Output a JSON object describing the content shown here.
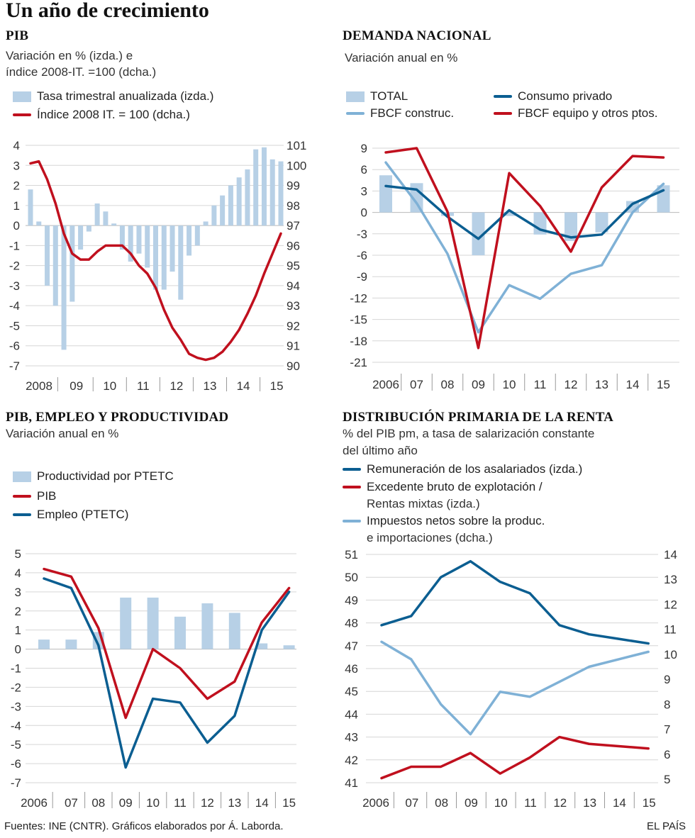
{
  "title": "Un año de crecimiento",
  "source": "Fuentes: INE (CNTR).  Gráficos elaborados por Á. Laborda.",
  "brand": "EL PAÍS",
  "colors": {
    "red": "#c0101e",
    "blue": "#0b5e91",
    "lightblue": "#7fb1d6",
    "bar": "#b7d0e6",
    "grid": "#d6d6d6"
  },
  "panels": {
    "pib": {
      "title": "PIB",
      "subtitle_1": "Variación en % (izda.) e",
      "subtitle_2": "índice 2008-IT. =100 (dcha.)",
      "legend_bar": "Tasa trimestral anualizada (izda.)",
      "legend_line": "Índice 2008 IT. = 100 (dcha.)"
    },
    "demanda": {
      "title": "DEMANDA NACIONAL",
      "subtitle": "Variación anual en %",
      "legend_total": "TOTAL",
      "legend_consumo": "Consumo privado",
      "legend_fbcf_c": "FBCF construc.",
      "legend_fbcf_e": "FBCF equipo y otros ptos."
    },
    "empleo": {
      "title": "PIB, EMPLEO Y PRODUCTIVIDAD",
      "subtitle": "Variación  anual en %",
      "legend_prod": "Productividad por  PTETC",
      "legend_pib": "PIB",
      "legend_empleo": "Empleo (PTETC)"
    },
    "renta": {
      "title": "DISTRIBUCIÓN PRIMARIA DE LA RENTA",
      "subtitle_1": "% del PIB pm, a tasa de salarización constante",
      "subtitle_2": "del último año",
      "legend_rem": "Remuneración de los asalariados (izda.)",
      "legend_exc_1": "Excedente bruto de explotación /",
      "legend_exc_2": "Rentas mixtas (izda.)",
      "legend_imp_1": "Impuestos netos sobre la produc.",
      "legend_imp_2": "e importaciones (dcha.)"
    }
  },
  "chart_data": [
    {
      "id": "pib",
      "type": "bar",
      "title": "PIB",
      "x_labels": [
        "2008",
        "09",
        "10",
        "11",
        "12",
        "13",
        "14",
        "15"
      ],
      "y_left_ticks": [
        4,
        3,
        2,
        1,
        0,
        -1,
        -2,
        -3,
        -4,
        -5,
        -6,
        -7
      ],
      "y_right_ticks": [
        101,
        100,
        99,
        98,
        97,
        96,
        95,
        94,
        93,
        92,
        91,
        90
      ],
      "ylim_left": [
        -7,
        4
      ],
      "ylim_right": [
        90,
        101
      ],
      "series": [
        {
          "name": "Tasa trimestral anualizada (izda.)",
          "kind": "bar",
          "axis": "left",
          "values": [
            1.8,
            0.2,
            -3.0,
            -4.0,
            -6.2,
            -3.8,
            -1.2,
            -0.3,
            1.1,
            0.7,
            0.1,
            -1.2,
            -1.8,
            -1.4,
            -2.1,
            -3.2,
            -3.2,
            -2.3,
            -3.7,
            -1.5,
            -1.0,
            0.2,
            1.0,
            1.5,
            2.0,
            2.4,
            2.8,
            3.8,
            3.9,
            3.3,
            3.2
          ]
        },
        {
          "name": "Índice 2008 IT. = 100 (dcha.)",
          "kind": "line",
          "axis": "right",
          "values": [
            100.1,
            100.2,
            99.3,
            98.1,
            96.6,
            95.6,
            95.3,
            95.3,
            95.7,
            96.0,
            96.0,
            96.0,
            95.6,
            95.0,
            94.6,
            93.9,
            92.8,
            91.9,
            91.3,
            90.6,
            90.4,
            90.3,
            90.4,
            90.7,
            91.2,
            91.8,
            92.6,
            93.5,
            94.6,
            95.6,
            96.6
          ]
        }
      ]
    },
    {
      "id": "demanda",
      "type": "bar",
      "title": "DEMANDA NACIONAL",
      "categories": [
        "2006",
        "07",
        "08",
        "09",
        "10",
        "11",
        "12",
        "13",
        "14",
        "15"
      ],
      "y_ticks": [
        9,
        6,
        3,
        0,
        -3,
        -6,
        -9,
        -12,
        -15,
        -18,
        -21
      ],
      "ylim": [
        -21,
        9
      ],
      "series": [
        {
          "name": "TOTAL",
          "kind": "bar",
          "values": [
            5.2,
            4.1,
            -0.5,
            -6.0,
            -0.5,
            -3.1,
            -4.0,
            -2.8,
            1.6,
            3.8
          ]
        },
        {
          "name": "Consumo privado",
          "kind": "line",
          "values": [
            3.7,
            3.2,
            -0.6,
            -3.7,
            0.3,
            -2.4,
            -3.5,
            -3.1,
            1.2,
            3.1
          ]
        },
        {
          "name": "FBCF construc.",
          "kind": "line",
          "values": [
            7.0,
            1.3,
            -5.8,
            -16.8,
            -10.2,
            -12.1,
            -8.6,
            -7.4,
            0.0,
            4.0
          ]
        },
        {
          "name": "FBCF equipo y otros ptos.",
          "kind": "line",
          "values": [
            8.4,
            9.0,
            0.1,
            -19.0,
            5.5,
            0.9,
            -5.5,
            3.5,
            7.9,
            7.7
          ]
        }
      ]
    },
    {
      "id": "empleo",
      "type": "bar",
      "title": "PIB, EMPLEO Y PRODUCTIVIDAD",
      "categories": [
        "2006",
        "07",
        "08",
        "09",
        "10",
        "11",
        "12",
        "13",
        "14",
        "15"
      ],
      "y_ticks": [
        5,
        4,
        3,
        2,
        1,
        0,
        -1,
        -2,
        -3,
        -4,
        -5,
        -6,
        -7
      ],
      "ylim": [
        -7,
        5
      ],
      "series": [
        {
          "name": "Productividad por  PTETC",
          "kind": "bar",
          "values": [
            0.5,
            0.5,
            0.9,
            2.7,
            2.7,
            1.7,
            2.4,
            1.9,
            0.3,
            0.2
          ]
        },
        {
          "name": "PIB",
          "kind": "line",
          "values": [
            4.2,
            3.8,
            1.1,
            -3.6,
            0.0,
            -1.0,
            -2.6,
            -1.7,
            1.4,
            3.2
          ]
        },
        {
          "name": "Empleo (PTETC)",
          "kind": "line",
          "values": [
            3.7,
            3.2,
            0.2,
            -6.2,
            -2.6,
            -2.8,
            -4.9,
            -3.5,
            1.0,
            3.0
          ]
        }
      ]
    },
    {
      "id": "renta",
      "type": "line",
      "title": "DISTRIBUCIÓN PRIMARIA DE LA RENTA",
      "categories": [
        "2006",
        "07",
        "08",
        "09",
        "10",
        "11",
        "12",
        "13",
        "14",
        "15"
      ],
      "y_left_ticks": [
        51,
        50,
        49,
        48,
        47,
        46,
        45,
        44,
        43,
        42,
        41
      ],
      "y_right_ticks": [
        14,
        13,
        12,
        11,
        10,
        9,
        8,
        7,
        6,
        5
      ],
      "ylim_left": [
        41,
        51
      ],
      "ylim_right": [
        5,
        14
      ],
      "series": [
        {
          "name": "Remuneración de los asalariados (izda.)",
          "axis": "left",
          "values": [
            47.9,
            48.3,
            50.0,
            50.7,
            49.8,
            49.3,
            47.9,
            47.5,
            47.3,
            47.1
          ]
        },
        {
          "name": "Excedente bruto de explotación / Rentas mixtas (izda.)",
          "axis": "left",
          "values": [
            41.2,
            41.7,
            41.7,
            42.3,
            41.4,
            42.1,
            43.0,
            42.7,
            42.6,
            42.5
          ]
        },
        {
          "name": "Impuestos netos sobre la produc. e importaciones (dcha.)",
          "axis": "right",
          "values": [
            10.5,
            9.8,
            8.0,
            6.8,
            8.5,
            8.3,
            8.9,
            9.5,
            9.8,
            10.1
          ]
        }
      ]
    }
  ]
}
